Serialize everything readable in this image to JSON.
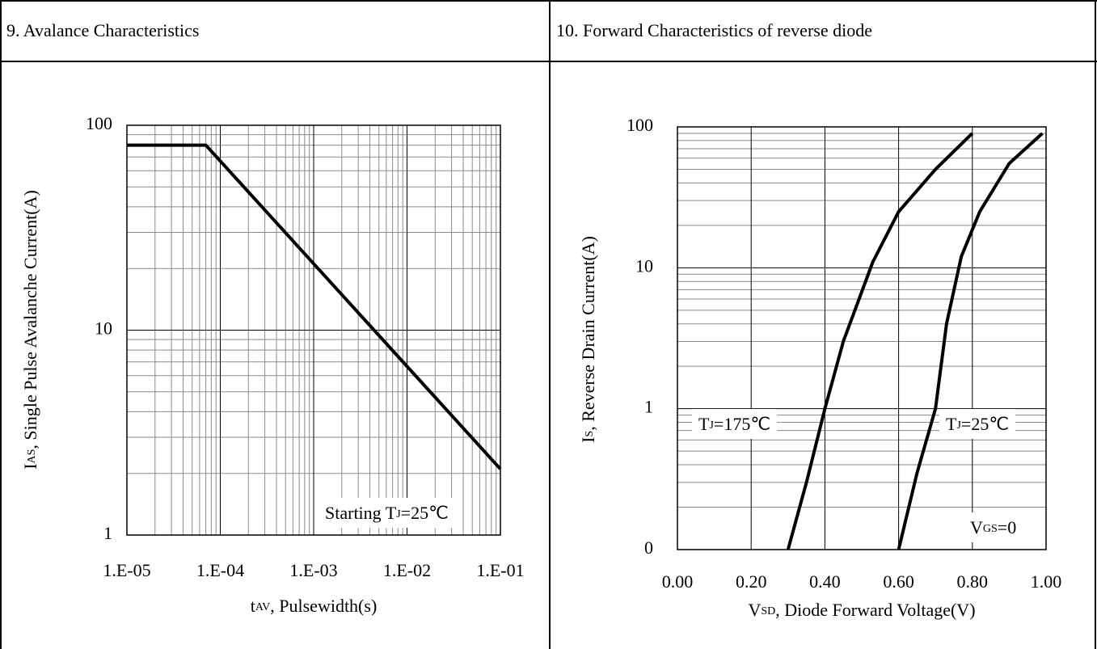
{
  "chart_data": [
    {
      "type": "line",
      "title": "9. Avalance Characteristics",
      "x_label": [
        "t",
        "AV",
        ", Pulsewidth(s)"
      ],
      "y_label": [
        "I",
        "AS",
        ", Single Pulse Avalanche Current(A)"
      ],
      "annotations": [
        {
          "text": [
            "Starting T",
            "J",
            "=25℃"
          ]
        }
      ],
      "xlog": true,
      "ylog": true,
      "xlim": [
        1e-05,
        0.1
      ],
      "ylim": [
        1,
        100
      ],
      "xticks": [
        {
          "value": 1e-05,
          "label": "1.E-05"
        },
        {
          "value": 0.0001,
          "label": "1.E-04"
        },
        {
          "value": 0.001,
          "label": "1.E-03"
        },
        {
          "value": 0.01,
          "label": "1.E-02"
        },
        {
          "value": 0.1,
          "label": "1.E-01"
        }
      ],
      "yticks": [
        1,
        10,
        100
      ],
      "grid": true,
      "minor_grid": [
        "x",
        "y"
      ],
      "series": [
        {
          "color": "#000000",
          "x": [
            1e-05,
            7e-05,
            0.1
          ],
          "values": [
            80,
            80,
            2.1
          ]
        }
      ]
    },
    {
      "type": "line",
      "title": "10. Forward Characteristics of reverse diode",
      "x_label": [
        "V",
        "SD",
        ", Diode Forward Voltage(V)"
      ],
      "y_label": [
        "I",
        "S",
        ", Reverse Drain Current(A)"
      ],
      "annotations": [
        {
          "text": [
            "T",
            "J",
            "=175℃"
          ]
        },
        {
          "text": [
            "T",
            "J",
            "=25℃"
          ]
        },
        {
          "text": [
            "V",
            "GS",
            "=0"
          ]
        }
      ],
      "xlog": false,
      "ylog": true,
      "xlim": [
        0,
        1
      ],
      "ylim": [
        0.1,
        100
      ],
      "xticks": [
        {
          "value": 0,
          "label": "0.00"
        },
        {
          "value": 0.2,
          "label": "0.20"
        },
        {
          "value": 0.4,
          "label": "0.40"
        },
        {
          "value": 0.6,
          "label": "0.60"
        },
        {
          "value": 0.8,
          "label": "0.80"
        },
        {
          "value": 1,
          "label": "1.00"
        }
      ],
      "yticks": [
        {
          "value": 0.1,
          "label": "0"
        },
        1,
        10,
        100
      ],
      "grid": true,
      "minor_grid": [
        "y"
      ],
      "series": [
        {
          "color": "#000000",
          "x": [
            0.3,
            0.35,
            0.4,
            0.45,
            0.53,
            0.6,
            0.7,
            0.8
          ],
          "values": [
            0.1,
            0.3,
            1,
            3,
            11,
            25,
            50,
            90
          ]
        },
        {
          "color": "#000000",
          "x": [
            0.6,
            0.65,
            0.7,
            0.73,
            0.77,
            0.82,
            0.9,
            0.99
          ],
          "values": [
            0.1,
            0.35,
            1,
            4,
            12,
            25,
            55,
            90
          ]
        }
      ]
    }
  ]
}
